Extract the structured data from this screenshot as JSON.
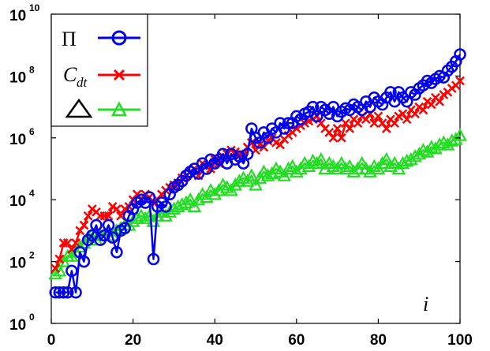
{
  "chart_data": {
    "type": "line",
    "title": "",
    "xlabel": "i",
    "ylabel": "",
    "xlim": [
      0,
      100
    ],
    "ylim_log10": [
      0,
      10
    ],
    "yscale": "log",
    "grid": false,
    "legend_placement": "top-left",
    "x_ticks": [
      "0",
      "20",
      "40",
      "60",
      "80",
      "100"
    ],
    "y_ticks": [
      {
        "base": "10",
        "exp": "0"
      },
      {
        "base": "10",
        "exp": "2"
      },
      {
        "base": "10",
        "exp": "4"
      },
      {
        "base": "10",
        "exp": "6"
      },
      {
        "base": "10",
        "exp": "8"
      },
      {
        "base": "10",
        "exp": "10"
      }
    ],
    "x": [
      1,
      2,
      3,
      4,
      5,
      6,
      7,
      8,
      9,
      10,
      11,
      12,
      13,
      14,
      15,
      16,
      17,
      18,
      19,
      20,
      21,
      22,
      23,
      24,
      25,
      26,
      27,
      28,
      29,
      30,
      31,
      32,
      33,
      34,
      35,
      36,
      37,
      38,
      39,
      40,
      41,
      42,
      43,
      44,
      45,
      46,
      47,
      48,
      49,
      50,
      51,
      52,
      53,
      54,
      55,
      56,
      57,
      58,
      59,
      60,
      61,
      62,
      63,
      64,
      65,
      66,
      67,
      68,
      69,
      70,
      71,
      72,
      73,
      74,
      75,
      76,
      77,
      78,
      79,
      80,
      81,
      82,
      83,
      84,
      85,
      86,
      87,
      88,
      89,
      90,
      91,
      92,
      93,
      94,
      95,
      96,
      97,
      98,
      99,
      100
    ],
    "series": [
      {
        "name": "Π",
        "legend_label": "Π",
        "color": "#0000ee",
        "marker": "circle",
        "values": [
          10,
          10,
          10,
          10,
          50,
          10,
          200,
          100,
          500,
          700,
          1500,
          500,
          700,
          1500,
          600,
          200,
          1000,
          1200,
          3000,
          5000,
          8000,
          10000,
          8000,
          12000,
          120,
          6000,
          8000,
          6000,
          15000,
          25000,
          30000,
          40000,
          60000,
          80000,
          100000,
          70000,
          150000,
          100000,
          200000,
          150000,
          200000,
          300000,
          150000,
          300000,
          200000,
          250000,
          150000,
          300000,
          2000000,
          1000000,
          700000,
          1500000,
          1000000,
          2000000,
          1500000,
          3000000,
          2000000,
          3000000,
          3000000,
          5000000,
          4000000,
          6000000,
          7000000,
          10000000,
          5000000,
          10000000,
          8000000,
          6000000,
          10000000,
          5000000,
          7000000,
          9000000,
          8000000,
          12000000,
          10000000,
          8000000,
          15000000,
          10000000,
          20000000,
          15000000,
          12000000,
          20000000,
          30000000,
          15000000,
          30000000,
          20000000,
          15000000,
          30000000,
          25000000,
          40000000,
          50000000,
          70000000,
          60000000,
          80000000,
          100000000,
          90000000,
          150000000,
          200000000,
          300000000,
          500000000
        ]
      },
      {
        "name": "Cdt",
        "legend_label": "C",
        "legend_sub": "dt",
        "color": "#ff0000",
        "marker": "x",
        "values": [
          60,
          120,
          400,
          400,
          250,
          400,
          1000,
          1500,
          3000,
          5000,
          4000,
          3000,
          3000,
          3000,
          6000,
          5000,
          3000,
          5000,
          6000,
          10000,
          15000,
          10000,
          15000,
          12000,
          8000,
          10000,
          15000,
          20000,
          25000,
          30000,
          35000,
          50000,
          60000,
          80000,
          100000,
          60000,
          150000,
          120000,
          100000,
          200000,
          150000,
          250000,
          300000,
          400000,
          350000,
          300000,
          250000,
          500000,
          700000,
          400000,
          600000,
          500000,
          800000,
          1000000,
          700000,
          600000,
          900000,
          1200000,
          1500000,
          2000000,
          2500000,
          3000000,
          3500000,
          4000000,
          5000000,
          3000000,
          2000000,
          1500000,
          1000000,
          2000000,
          1000000,
          3000000,
          2000000,
          4000000,
          3000000,
          5000000,
          4000000,
          6000000,
          3000000,
          5000000,
          3000000,
          2000000,
          4000000,
          3000000,
          5000000,
          6000000,
          4000000,
          8000000,
          6000000,
          10000000,
          8000000,
          15000000,
          12000000,
          20000000,
          15000000,
          25000000,
          30000000,
          40000000,
          50000000,
          70000000
        ]
      },
      {
        "name": "Δ",
        "legend_label": "Δ",
        "color": "#22dd22",
        "marker": "triangle",
        "values": [
          40,
          50,
          100,
          150,
          150,
          200,
          300,
          400,
          600,
          800,
          500,
          700,
          700,
          1000,
          700,
          1000,
          1200,
          1500,
          1500,
          2000,
          2500,
          3000,
          2500,
          3000,
          2000,
          3000,
          4000,
          3000,
          4000,
          5000,
          6000,
          7000,
          8000,
          10000,
          6000,
          10000,
          15000,
          12000,
          20000,
          15000,
          20000,
          30000,
          25000,
          20000,
          30000,
          40000,
          50000,
          40000,
          60000,
          30000,
          50000,
          80000,
          60000,
          70000,
          100000,
          80000,
          60000,
          100000,
          120000,
          80000,
          100000,
          150000,
          120000,
          180000,
          150000,
          200000,
          100000,
          150000,
          120000,
          100000,
          150000,
          100000,
          120000,
          80000,
          100000,
          150000,
          100000,
          80000,
          120000,
          100000,
          150000,
          200000,
          120000,
          150000,
          100000,
          150000,
          180000,
          200000,
          250000,
          300000,
          400000,
          350000,
          500000,
          450000,
          600000,
          700000,
          600000,
          800000,
          900000,
          1200000
        ]
      }
    ]
  }
}
